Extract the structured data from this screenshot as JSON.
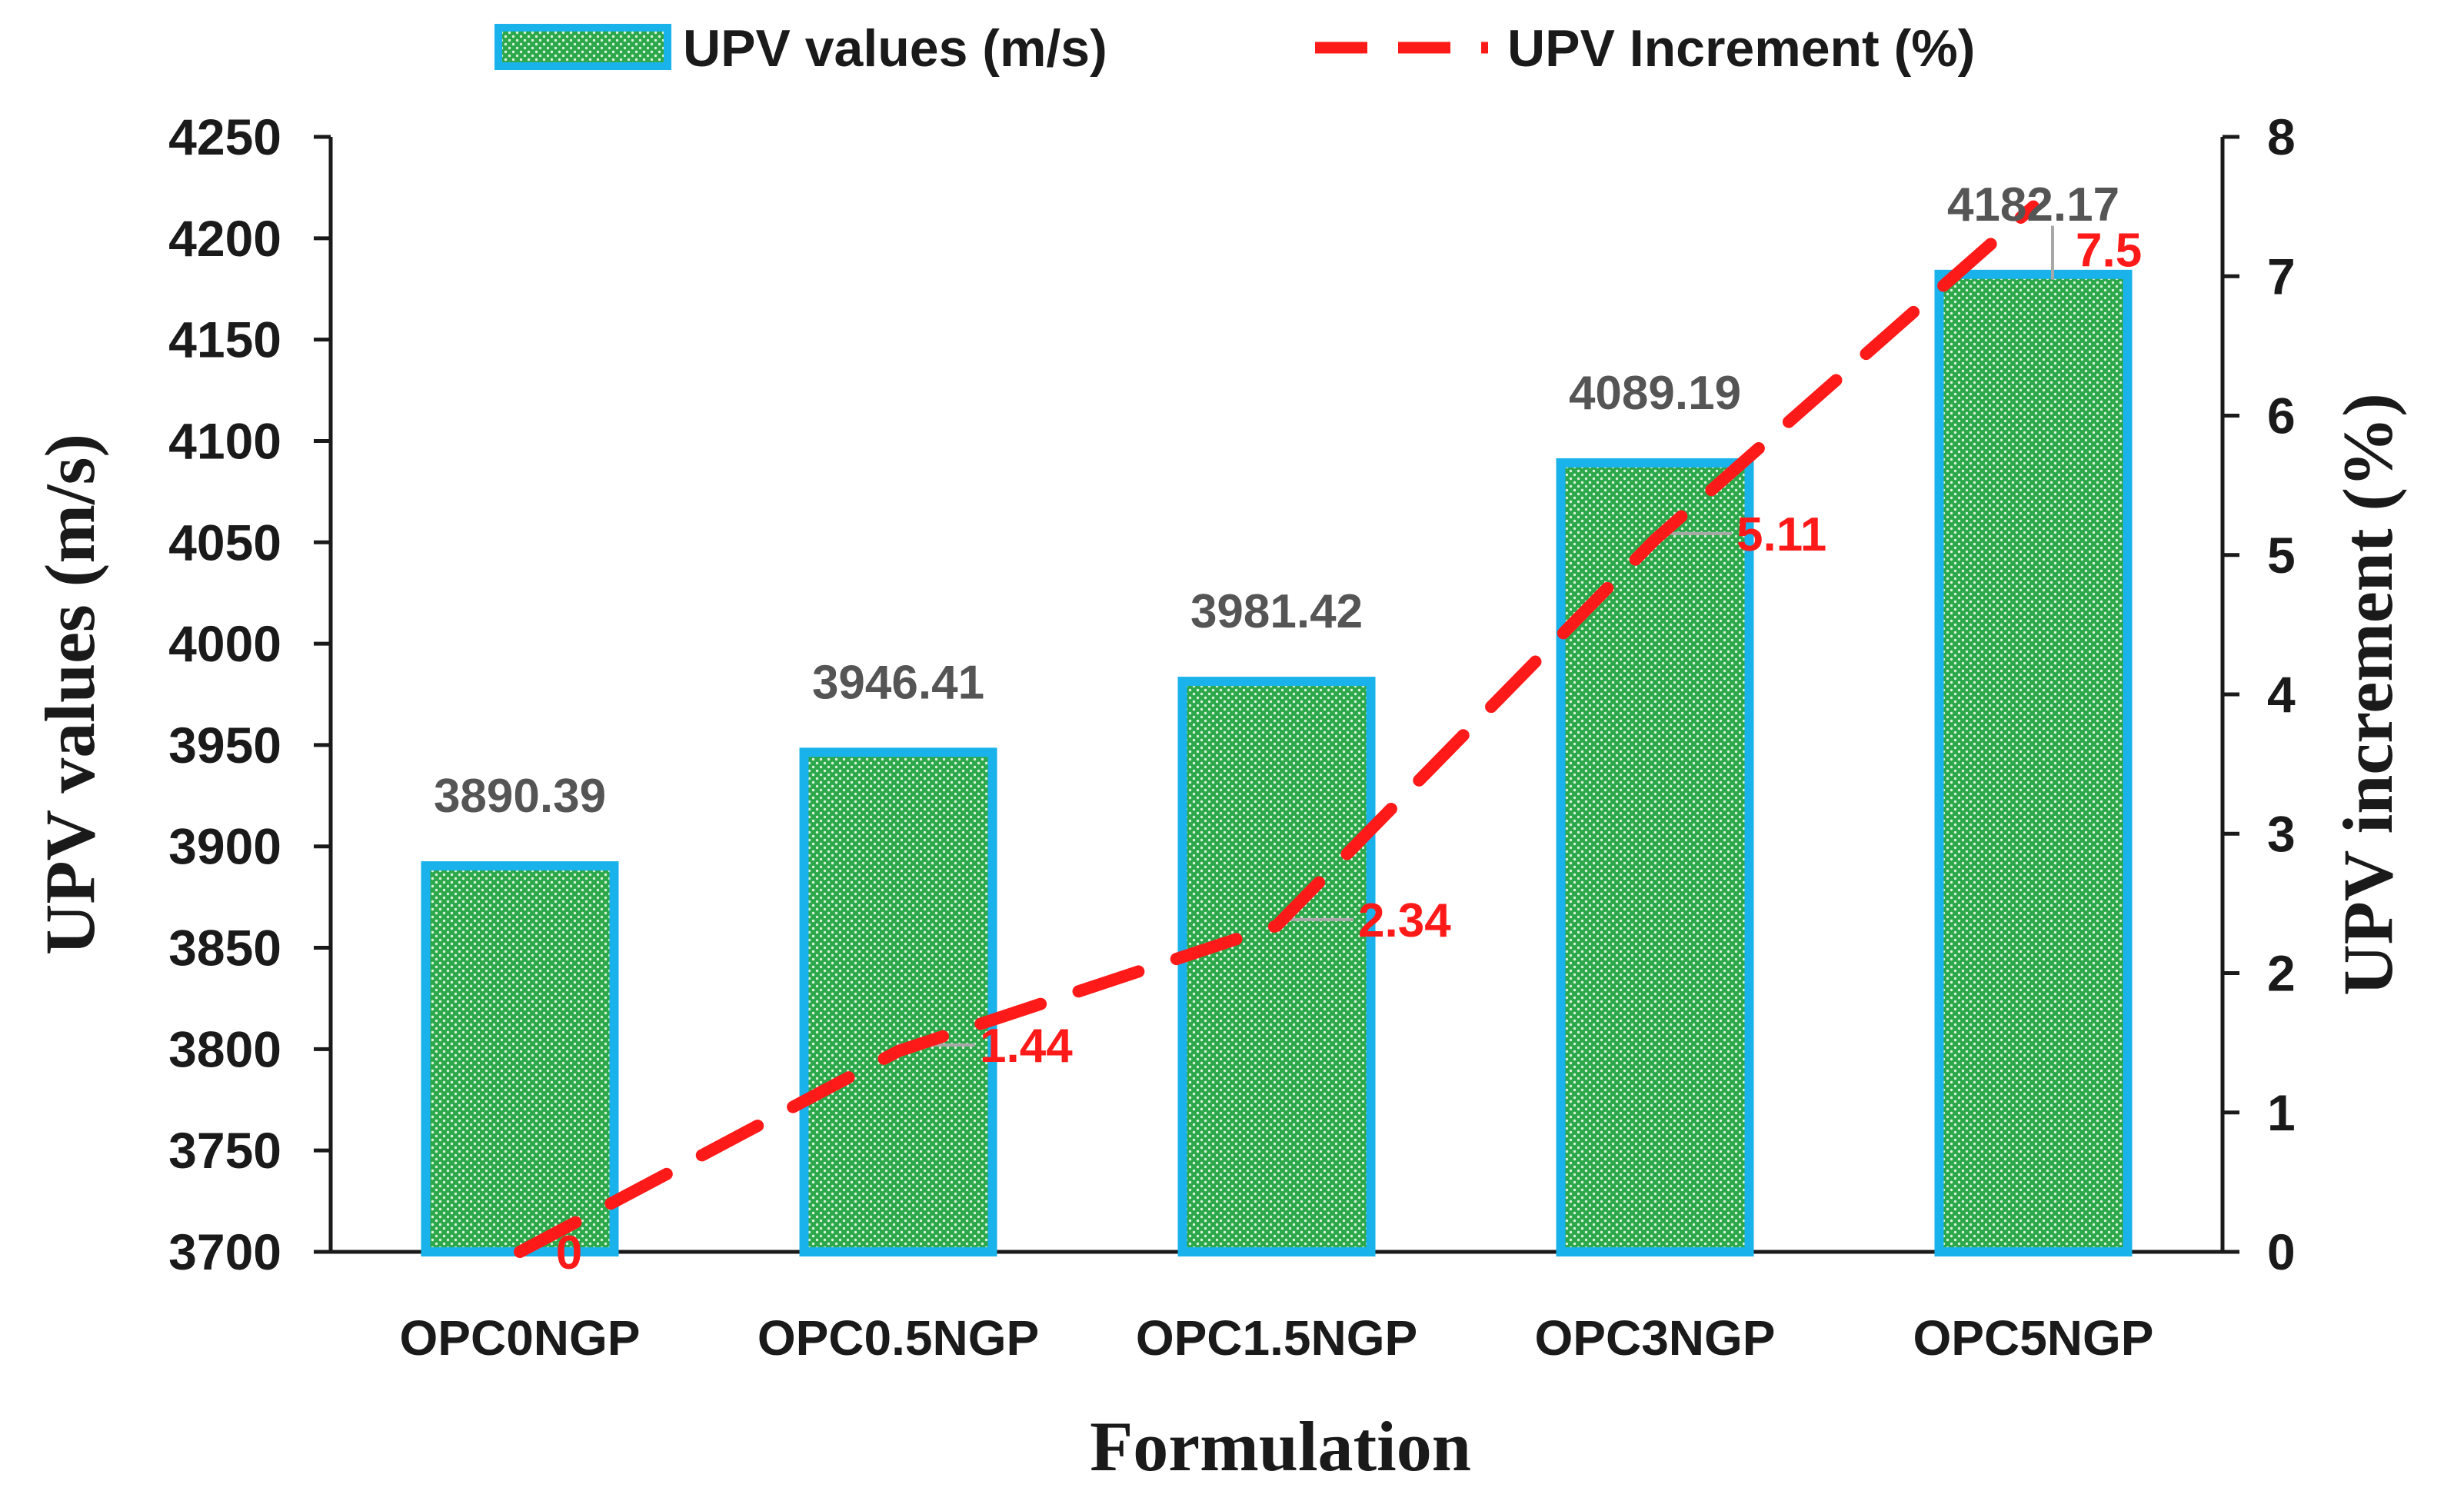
{
  "chart_data": {
    "type": "bar",
    "title": "",
    "xlabel": "Formulation",
    "ylabel": "UPV values (m/s)",
    "y2label": "UPV increment (%)",
    "categories": [
      "OPC0NGP",
      "OPC0.5NGP",
      "OPC1.5NGP",
      "OPC3NGP",
      "OPC5NGP"
    ],
    "ylim": [
      3700,
      4250
    ],
    "yticks": [
      "3700",
      "3750",
      "3800",
      "3850",
      "3900",
      "3950",
      "4000",
      "4050",
      "4100",
      "4150",
      "4200",
      "4250"
    ],
    "y2lim": [
      0,
      8
    ],
    "y2ticks": [
      "0",
      "1",
      "2",
      "3",
      "4",
      "5",
      "6",
      "7",
      "8"
    ],
    "legend_position": "top",
    "series": [
      {
        "name": "UPV values (m/s)",
        "type": "bar",
        "axis": "left",
        "values": [
          3890.39,
          3946.41,
          3981.42,
          4089.19,
          4182.17
        ],
        "labels": [
          "3890.39",
          "3946.41",
          "3981.42",
          "4089.19",
          "4182.17"
        ],
        "fill_color": "#2ca84a",
        "edge_color": "#1ab2ea"
      },
      {
        "name": "UPV Increment (%)",
        "type": "line",
        "style": "dashed",
        "axis": "right",
        "values": [
          0,
          1.44,
          2.34,
          5.11,
          7.5
        ],
        "labels": [
          "0",
          "1.44",
          "2.34",
          "5.11",
          "7.5"
        ],
        "line_color": "#ff1a1a"
      }
    ]
  }
}
